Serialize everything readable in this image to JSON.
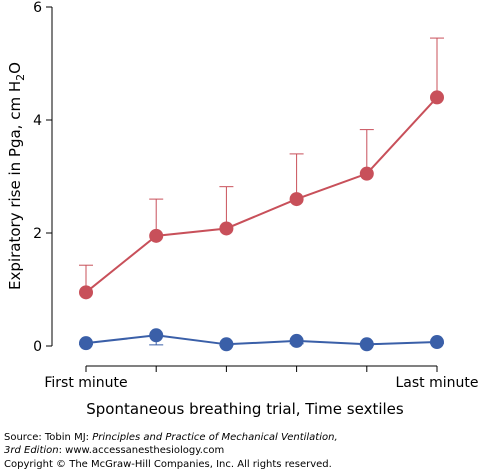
{
  "chart_data": {
    "type": "line",
    "x_label": "Spontaneous breathing trial, Time sextiles",
    "y_label": [
      "Expiratory rise in Pga, cm H",
      "2",
      "O"
    ],
    "categories": [
      "First minute",
      null,
      null,
      null,
      null,
      "Last minute"
    ],
    "series": [
      {
        "color": "#c8505a",
        "values": [
          0.95,
          1.95,
          2.08,
          2.6,
          3.05,
          4.4
        ],
        "errors": [
          0.48,
          0.65,
          0.74,
          0.8,
          0.78,
          1.05
        ],
        "error_direction": "up"
      },
      {
        "color": "#3a5fa8",
        "values": [
          0.05,
          0.19,
          0.03,
          0.09,
          0.03,
          0.07
        ],
        "errors": [
          0.02,
          0.17,
          0.02,
          0.05,
          0.02,
          0.02
        ],
        "error_direction": "down"
      }
    ],
    "ylim": [
      0,
      6
    ],
    "yticks": [
      0,
      2,
      4,
      6
    ],
    "source": {
      "prefix": "Source: Tobin MJ: ",
      "book": "Principles and Practice of Mechanical Ventilation,",
      "edition": "3rd Edition",
      "rest": ": www.accessanesthesiology.com"
    },
    "copyright": "Copyright © The McGraw-Hill Companies, Inc. All rights reserved."
  }
}
